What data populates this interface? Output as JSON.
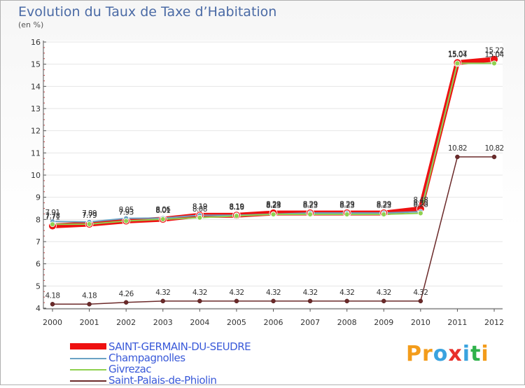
{
  "title": "Evolution du Taux de Taxe d’Habitation",
  "unit": "(en %)",
  "logo": {
    "text": "Proxiti",
    "colors": [
      "#f39c1b",
      "#f39c1b",
      "#3aa3df",
      "#e8302a",
      "#3aa3df",
      "#2fb24a",
      "#f39c1b"
    ]
  },
  "chart_data": {
    "type": "line",
    "title": "Evolution du Taux de Taxe d’Habitation",
    "ylabel": "(en %)",
    "xlabel": "",
    "x": [
      "2000",
      "2001",
      "2002",
      "2003",
      "2004",
      "2005",
      "2006",
      "2007",
      "2008",
      "2009",
      "2010",
      "2011",
      "2012"
    ],
    "ylim": [
      4,
      16
    ],
    "yticks": [
      "4",
      "5",
      "6",
      "7",
      "8",
      "9",
      "10",
      "11",
      "12",
      "13",
      "14",
      "15",
      "16"
    ],
    "series": [
      {
        "name": "SAINT-GERMAIN-DU-SEUDRE",
        "color": "#ee1111",
        "values": [
          7.71,
          7.79,
          7.93,
          8.01,
          8.19,
          8.19,
          8.29,
          8.29,
          8.29,
          8.29,
          8.48,
          15.07,
          15.22
        ],
        "labels": [
          "7.71",
          "7.79",
          "7.93",
          "8.01",
          "8.19",
          "8.19",
          "8.29",
          "8.29",
          "8.29",
          "8.29",
          "8.48",
          "15.07",
          "15.22"
        ]
      },
      {
        "name": "Champagnolles",
        "color": "#6aa2c4",
        "values": [
          7.91,
          7.89,
          8.05,
          8.06,
          8.19,
          8.19,
          8.24,
          8.29,
          8.29,
          8.29,
          8.35,
          15.04,
          15.04
        ],
        "labels": [
          "7.91",
          "7.89",
          "8.05",
          "8.06",
          "8.19",
          "8.19",
          "8.24",
          "8.29",
          "8.29",
          "8.29",
          "8.35",
          "15.04",
          "15.04"
        ]
      },
      {
        "name": "Givrezac",
        "color": "#8fd14f",
        "values": [
          7.78,
          7.79,
          7.93,
          8.01,
          8.08,
          8.16,
          8.23,
          8.23,
          8.23,
          8.23,
          8.28,
          15.04,
          15.04
        ],
        "labels": [
          "7.78",
          "7.79",
          "7.93",
          "8.01",
          "8.08",
          "8.16",
          "8.23",
          "8.23",
          "8.23",
          "8.23",
          "8.28",
          "15.04",
          "15.04"
        ]
      },
      {
        "name": "Saint-Palais-de-Phiolin",
        "color": "#6b2a2a",
        "values": [
          4.18,
          4.18,
          4.26,
          4.32,
          4.32,
          4.32,
          4.32,
          4.32,
          4.32,
          4.32,
          4.32,
          10.82,
          10.82
        ],
        "labels": [
          "4.18",
          "4.18",
          "4.26",
          "4.32",
          "4.32",
          "4.32",
          "4.32",
          "4.32",
          "4.32",
          "4.32",
          "4.32",
          "10.82",
          "10.82"
        ]
      }
    ]
  }
}
